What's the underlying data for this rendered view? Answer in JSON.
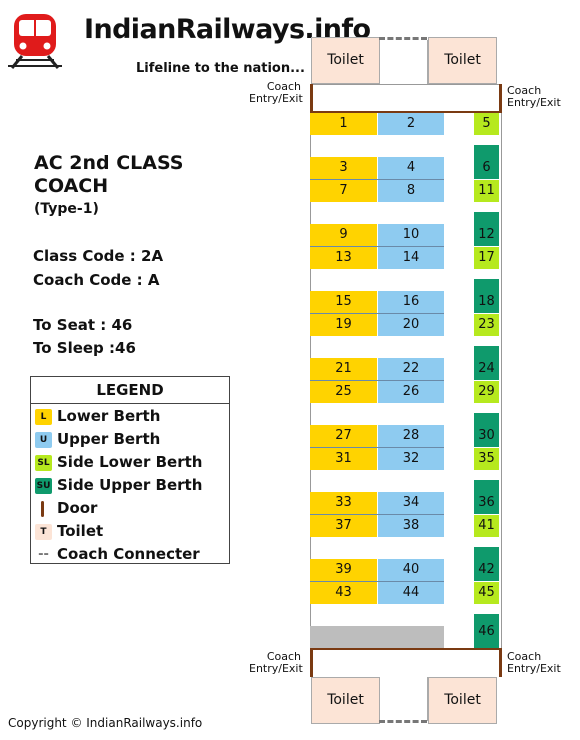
{
  "header": {
    "site_name": "IndianRailways.info",
    "tagline": "Lifeline to the nation..."
  },
  "coach": {
    "title_line1": "AC 2nd CLASS",
    "title_line2": "COACH",
    "type": "(Type-1)",
    "class_code": "Class Code : 2A",
    "coach_code": "Coach Code : A",
    "to_seat": "To Seat : 46",
    "to_sleep": "To Sleep :46"
  },
  "legend": {
    "title": "LEGEND",
    "items": [
      {
        "symbol": "L",
        "label": "Lower Berth",
        "color": "#ffd300"
      },
      {
        "symbol": "U",
        "label": "Upper Berth",
        "color": "#8ecbf0"
      },
      {
        "symbol": "SL",
        "label": "Side Lower Berth",
        "color": "#b6e91e"
      },
      {
        "symbol": "SU",
        "label": "Side Upper Berth",
        "color": "#0f9a6c"
      },
      {
        "symbol": "",
        "label": "Door",
        "color": "#7a3a12"
      },
      {
        "symbol": "T",
        "label": "Toilet",
        "color": "#fce4d6"
      },
      {
        "symbol": "--",
        "label": "Coach Connecter",
        "color": "#777777"
      }
    ]
  },
  "diagram": {
    "toilet_label": "Toilet",
    "entry_line1": "Coach",
    "entry_line2": "Entry/Exit",
    "berths_main": [
      [
        "1",
        "2"
      ],
      [
        "3",
        "4"
      ],
      [
        "7",
        "8"
      ],
      [
        "9",
        "10"
      ],
      [
        "13",
        "14"
      ],
      [
        "15",
        "16"
      ],
      [
        "19",
        "20"
      ],
      [
        "21",
        "22"
      ],
      [
        "25",
        "26"
      ],
      [
        "27",
        "28"
      ],
      [
        "31",
        "32"
      ],
      [
        "33",
        "34"
      ],
      [
        "37",
        "38"
      ],
      [
        "39",
        "40"
      ],
      [
        "43",
        "44"
      ]
    ],
    "berths_side": [
      "5",
      "6",
      "11",
      "12",
      "17",
      "18",
      "23",
      "24",
      "29",
      "30",
      "35",
      "36",
      "41",
      "42",
      "45",
      "46"
    ]
  },
  "footer": {
    "copyright": "Copyright © IndianRailways.info"
  },
  "colors": {
    "lower": "#ffd300",
    "upper": "#8ecbf0",
    "side_lower": "#b6e91e",
    "side_upper": "#0f9a6c",
    "door": "#7a3a12",
    "toilet": "#fce4d6",
    "pantry": "#bdbdbd"
  }
}
